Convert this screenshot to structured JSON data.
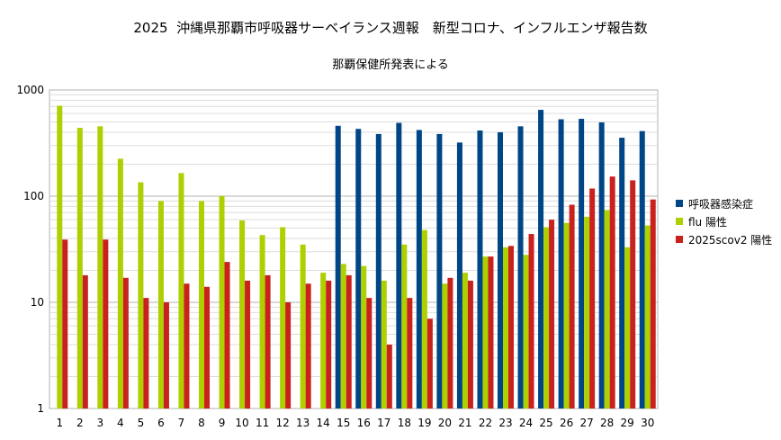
{
  "chart_data": {
    "type": "bar",
    "title": "2025  沖縄県那覇市呼吸器サーベイランス週報　新型コロナ、インフルエンザ報告数",
    "subtitle": "那覇保健所発表による",
    "xlabel": "",
    "ylabel": "",
    "yscale": "log",
    "ylim": [
      1,
      1000
    ],
    "y_ticks": [
      "1",
      "10",
      "100",
      "1000"
    ],
    "grid": true,
    "legend_position": "right",
    "categories": [
      "1",
      "2",
      "3",
      "4",
      "5",
      "6",
      "7",
      "8",
      "9",
      "10",
      "11",
      "12",
      "13",
      "14",
      "15",
      "16",
      "17",
      "18",
      "19",
      "20",
      "21",
      "22",
      "23",
      "24",
      "25",
      "26",
      "27",
      "28",
      "29",
      "30"
    ],
    "series": [
      {
        "name": "呼吸器感染症",
        "color": "#004586",
        "values": [
          null,
          null,
          null,
          null,
          null,
          null,
          null,
          null,
          null,
          null,
          null,
          null,
          null,
          null,
          460,
          430,
          385,
          490,
          420,
          385,
          320,
          415,
          400,
          455,
          650,
          530,
          535,
          495,
          355,
          410
        ]
      },
      {
        "name": "flu 陽性",
        "color": "#aecf00",
        "values": [
          710,
          440,
          455,
          225,
          135,
          90,
          165,
          90,
          100,
          59,
          43,
          51,
          35,
          19,
          23,
          22,
          16,
          35,
          48,
          15,
          19,
          27,
          33,
          28,
          51,
          56,
          64,
          74,
          33,
          53
        ]
      },
      {
        "name": "2025scov2 陽性",
        "color": "#c9211e",
        "values": [
          39,
          18,
          39,
          17,
          11,
          10,
          15,
          14,
          24,
          16,
          18,
          10,
          15,
          16,
          18,
          11,
          4,
          11,
          7,
          17,
          16,
          27,
          34,
          44,
          60,
          83,
          118,
          153,
          141,
          93
        ]
      }
    ]
  }
}
